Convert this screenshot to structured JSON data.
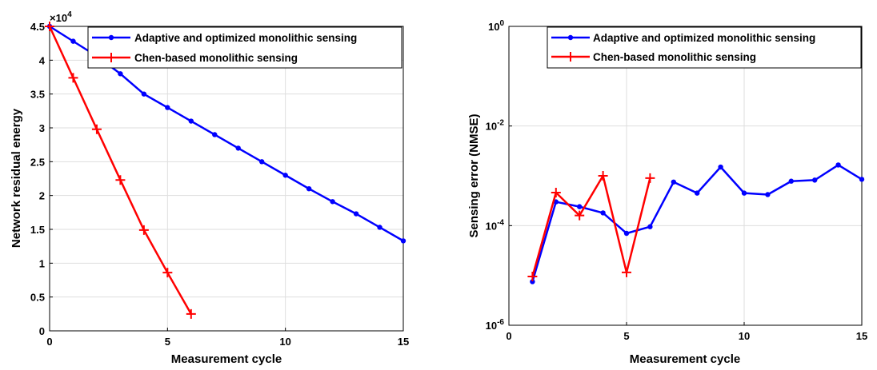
{
  "chart_data": [
    {
      "type": "line",
      "xlabel": "Measurement cycle",
      "ylabel": "Network residual energy",
      "y_exponent_label": "×10",
      "y_exponent_power": "4",
      "xlim": [
        0,
        15
      ],
      "ylim": [
        0,
        4.5
      ],
      "xticks": [
        0,
        5,
        10,
        15
      ],
      "yticks": [
        0,
        0.5,
        1,
        1.5,
        2,
        2.5,
        3,
        3.5,
        4,
        4.5
      ],
      "y_scale": "linear",
      "grid": true,
      "legend_position": "top-right",
      "series": [
        {
          "name": "Adaptive and optimized monolithic sensing",
          "color": "#0000ff",
          "marker": "dot",
          "x": [
            0,
            1,
            2,
            3,
            4,
            5,
            6,
            7,
            8,
            9,
            10,
            11,
            12,
            13,
            14,
            15
          ],
          "y": [
            4.5,
            4.28,
            4.06,
            3.8,
            3.5,
            3.3,
            3.1,
            2.9,
            2.7,
            2.5,
            2.3,
            2.1,
            1.91,
            1.73,
            1.53,
            1.33
          ]
        },
        {
          "name": "Chen-based monolithic sensing",
          "color": "#ff0000",
          "marker": "plus",
          "x": [
            0,
            1,
            2,
            3,
            4,
            5,
            6
          ],
          "y": [
            4.5,
            3.74,
            2.98,
            2.23,
            1.49,
            0.86,
            0.25
          ]
        }
      ]
    },
    {
      "type": "line",
      "xlabel": "Measurement cycle",
      "ylabel": "Sensing error (NMSE)",
      "xlim": [
        0,
        15
      ],
      "ylim": [
        1e-06,
        1
      ],
      "xticks": [
        0,
        5,
        10,
        15
      ],
      "yticks": [
        1e-06,
        0.0001,
        0.01,
        1
      ],
      "ytick_base": "10",
      "ytick_powers": [
        "-6",
        "-4",
        "-2",
        "0"
      ],
      "y_scale": "log",
      "grid": true,
      "legend_position": "top-right",
      "series": [
        {
          "name": "Adaptive and optimized monolithic sensing",
          "color": "#0000ff",
          "marker": "dot",
          "x": [
            1,
            2,
            3,
            4,
            5,
            6,
            7,
            8,
            9,
            10,
            11,
            12,
            13,
            14,
            15
          ],
          "y": [
            7.5e-06,
            0.0003,
            0.00024,
            0.00018,
            7e-05,
            9.5e-05,
            0.00075,
            0.00045,
            0.0015,
            0.00045,
            0.00042,
            0.00078,
            0.00082,
            0.00165,
            0.00085
          ]
        },
        {
          "name": "Chen-based monolithic sensing",
          "color": "#ff0000",
          "marker": "plus",
          "x": [
            1,
            2,
            3,
            4,
            5,
            6
          ],
          "y": [
            9.5e-06,
            0.00046,
            0.00016,
            0.001,
            1.15e-05,
            0.0009
          ]
        }
      ]
    }
  ]
}
